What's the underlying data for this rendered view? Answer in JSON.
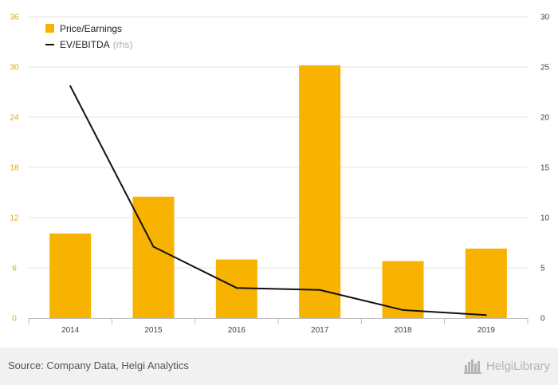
{
  "chart_data": {
    "type": "bar+line",
    "categories": [
      "2014",
      "2015",
      "2016",
      "2017",
      "2018",
      "2019"
    ],
    "series": [
      {
        "name": "Price/Earnings",
        "type": "bar",
        "axis": "left",
        "values": [
          10.1,
          14.5,
          7.0,
          30.2,
          6.8,
          8.3
        ]
      },
      {
        "name": "EV/EBITDA",
        "type": "line",
        "axis": "right",
        "values": [
          23.1,
          7.1,
          3.0,
          2.8,
          0.8,
          0.3
        ]
      }
    ],
    "y_left": {
      "ticks": [
        "0",
        "6",
        "12",
        "18",
        "24",
        "30",
        "36"
      ],
      "min": 0,
      "max": 36
    },
    "y_right": {
      "ticks": [
        "0",
        "5",
        "10",
        "15",
        "20",
        "25",
        "30"
      ],
      "min": 0,
      "max": 30
    },
    "legend": {
      "placement": "top-left",
      "bar_label": "Price/Earnings",
      "line_label": "EV/EBITDA",
      "line_suffix": "(rhs)"
    },
    "grid": true
  },
  "colors": {
    "bar": "#f7b300",
    "line": "#111111",
    "left_ticks": "#e5a800",
    "grid": "#e6e6e6",
    "axis_text": "#444444"
  },
  "footer": {
    "source": "Source: Company Data, Helgi Analytics",
    "logo_text": "HelgiLibrary",
    "logo_icon": "city-skyline-icon"
  }
}
